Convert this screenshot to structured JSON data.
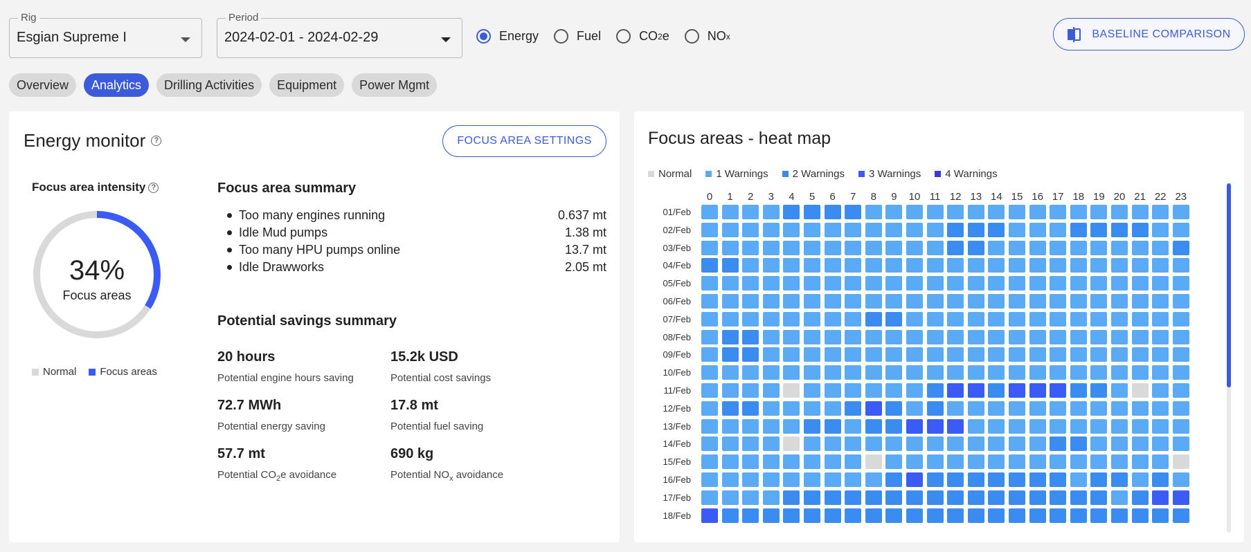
{
  "rig": {
    "label": "Rig",
    "value": "Esgian Supreme I"
  },
  "period": {
    "label": "Period",
    "value": "2024-02-01 - 2024-02-29"
  },
  "metric_options": [
    {
      "label": "Energy",
      "sub": "",
      "suffix": "",
      "selected": true
    },
    {
      "label": "Fuel",
      "sub": "",
      "suffix": "",
      "selected": false
    },
    {
      "label": "CO",
      "sub": "2",
      "suffix": "e",
      "selected": false
    },
    {
      "label": "NO",
      "sub": "x",
      "suffix": "",
      "selected": false
    }
  ],
  "baseline_button": "BASELINE COMPARISON",
  "tabs": [
    {
      "label": "Overview",
      "active": false
    },
    {
      "label": "Analytics",
      "active": true
    },
    {
      "label": "Drilling Activities",
      "active": false
    },
    {
      "label": "Equipment",
      "active": false
    },
    {
      "label": "Power Mgmt",
      "active": false
    }
  ],
  "energy_monitor": {
    "title": "Energy monitor",
    "focus_settings_button": "FOCUS AREA SETTINGS",
    "intensity_label": "Focus area intensity",
    "percent": 34,
    "percent_text": "34%",
    "percent_sub": "Focus areas",
    "legend": [
      {
        "label": "Normal",
        "color": "#d9d9d9"
      },
      {
        "label": "Focus areas",
        "color": "#3b5bf6"
      }
    ],
    "summary_title": "Focus area summary",
    "summary": [
      {
        "label": "Too many engines running",
        "value": "0.637 mt"
      },
      {
        "label": "Idle Mud pumps",
        "value": "1.38 mt"
      },
      {
        "label": "Too many HPU pumps online",
        "value": "13.7 mt"
      },
      {
        "label": "Idle Drawworks",
        "value": "2.05 mt"
      }
    ],
    "savings_title": "Potential savings summary",
    "savings": {
      "engine_hours": {
        "value": "20 hours",
        "desc": "Potential engine hours saving"
      },
      "cost": {
        "value": "15.2k USD",
        "desc": "Potential cost savings"
      },
      "energy": {
        "value": "72.7 MWh",
        "desc": "Potential energy saving"
      },
      "fuel": {
        "value": "17.8 mt",
        "desc": "Potential fuel saving"
      },
      "co2": {
        "value": "57.7 mt",
        "desc_pre": "Potential CO",
        "desc_sub": "2",
        "desc_post": "e avoidance"
      },
      "nox": {
        "value": "690 kg",
        "desc_pre": "Potential NO",
        "desc_sub": "x",
        "desc_post": " avoidance"
      }
    }
  },
  "heatmap": {
    "title": "Focus areas - heat map",
    "legend": [
      {
        "label": "Normal",
        "color": "#d9d9d9"
      },
      {
        "label": "1 Warnings",
        "color": "#5aaaf5"
      },
      {
        "label": "2 Warnings",
        "color": "#3a8cf0"
      },
      {
        "label": "3 Warnings",
        "color": "#3b5bf6"
      },
      {
        "label": "4 Warnings",
        "color": "#3a3ad8"
      }
    ],
    "hours": [
      "0",
      "1",
      "2",
      "3",
      "4",
      "5",
      "6",
      "7",
      "8",
      "9",
      "10",
      "11",
      "12",
      "13",
      "14",
      "15",
      "16",
      "17",
      "18",
      "19",
      "20",
      "21",
      "22",
      "23"
    ],
    "days": [
      "01/Feb",
      "02/Feb",
      "03/Feb",
      "04/Feb",
      "05/Feb",
      "06/Feb",
      "07/Feb",
      "08/Feb",
      "09/Feb",
      "10/Feb",
      "11/Feb",
      "12/Feb",
      "13/Feb",
      "14/Feb",
      "15/Feb",
      "16/Feb",
      "17/Feb",
      "18/Feb"
    ],
    "values": [
      [
        1,
        1,
        1,
        1,
        2,
        2,
        2,
        2,
        1,
        1,
        1,
        1,
        1,
        1,
        1,
        1,
        1,
        1,
        1,
        1,
        1,
        1,
        1,
        1
      ],
      [
        1,
        1,
        1,
        1,
        1,
        1,
        1,
        1,
        1,
        1,
        1,
        1,
        2,
        2,
        2,
        1,
        1,
        1,
        2,
        2,
        2,
        2,
        1,
        1
      ],
      [
        1,
        1,
        1,
        1,
        1,
        1,
        1,
        1,
        1,
        1,
        1,
        1,
        2,
        2,
        1,
        1,
        1,
        1,
        1,
        1,
        1,
        1,
        1,
        2
      ],
      [
        2,
        2,
        1,
        1,
        1,
        1,
        1,
        1,
        1,
        1,
        1,
        1,
        1,
        1,
        1,
        1,
        1,
        1,
        1,
        1,
        1,
        1,
        1,
        1
      ],
      [
        1,
        1,
        1,
        1,
        1,
        1,
        1,
        1,
        1,
        1,
        1,
        1,
        1,
        1,
        1,
        1,
        1,
        1,
        1,
        1,
        1,
        1,
        1,
        1
      ],
      [
        1,
        1,
        1,
        1,
        1,
        1,
        1,
        1,
        1,
        1,
        1,
        1,
        1,
        1,
        1,
        1,
        1,
        1,
        1,
        1,
        1,
        1,
        1,
        1
      ],
      [
        1,
        1,
        1,
        1,
        1,
        1,
        1,
        1,
        2,
        2,
        1,
        1,
        1,
        1,
        1,
        1,
        1,
        1,
        1,
        1,
        1,
        1,
        1,
        1
      ],
      [
        1,
        2,
        2,
        1,
        1,
        1,
        1,
        1,
        1,
        1,
        1,
        1,
        1,
        1,
        1,
        1,
        1,
        1,
        1,
        1,
        1,
        1,
        1,
        1
      ],
      [
        1,
        2,
        2,
        1,
        1,
        1,
        1,
        1,
        1,
        1,
        1,
        1,
        1,
        1,
        1,
        1,
        1,
        1,
        1,
        1,
        1,
        1,
        1,
        1
      ],
      [
        1,
        1,
        1,
        1,
        1,
        1,
        1,
        1,
        1,
        1,
        1,
        1,
        1,
        1,
        1,
        1,
        1,
        1,
        1,
        1,
        1,
        1,
        1,
        1
      ],
      [
        1,
        1,
        1,
        1,
        0,
        1,
        1,
        1,
        1,
        1,
        1,
        2,
        3,
        3,
        2,
        3,
        3,
        3,
        2,
        2,
        1,
        0,
        1,
        1
      ],
      [
        1,
        2,
        2,
        1,
        1,
        1,
        1,
        2,
        3,
        2,
        1,
        2,
        1,
        1,
        1,
        1,
        1,
        1,
        1,
        1,
        1,
        1,
        1,
        1
      ],
      [
        1,
        1,
        1,
        1,
        1,
        2,
        2,
        1,
        2,
        2,
        3,
        3,
        3,
        1,
        1,
        1,
        1,
        1,
        1,
        1,
        1,
        1,
        1,
        1
      ],
      [
        1,
        1,
        1,
        1,
        0,
        1,
        1,
        1,
        1,
        1,
        1,
        1,
        1,
        1,
        1,
        1,
        1,
        2,
        2,
        1,
        1,
        1,
        1,
        1
      ],
      [
        1,
        1,
        1,
        1,
        1,
        1,
        1,
        1,
        0,
        1,
        1,
        1,
        1,
        1,
        1,
        1,
        1,
        1,
        1,
        1,
        1,
        1,
        1,
        0
      ],
      [
        1,
        1,
        1,
        1,
        1,
        1,
        1,
        1,
        1,
        2,
        3,
        2,
        2,
        2,
        2,
        2,
        2,
        2,
        1,
        2,
        2,
        1,
        2,
        1
      ],
      [
        1,
        1,
        1,
        1,
        2,
        2,
        2,
        2,
        2,
        2,
        2,
        2,
        2,
        2,
        2,
        2,
        2,
        2,
        2,
        2,
        1,
        2,
        3,
        3
      ],
      [
        3,
        2,
        2,
        2,
        2,
        2,
        2,
        2,
        2,
        2,
        2,
        2,
        2,
        2,
        2,
        2,
        2,
        2,
        2,
        2,
        2,
        2,
        2,
        2
      ]
    ]
  }
}
